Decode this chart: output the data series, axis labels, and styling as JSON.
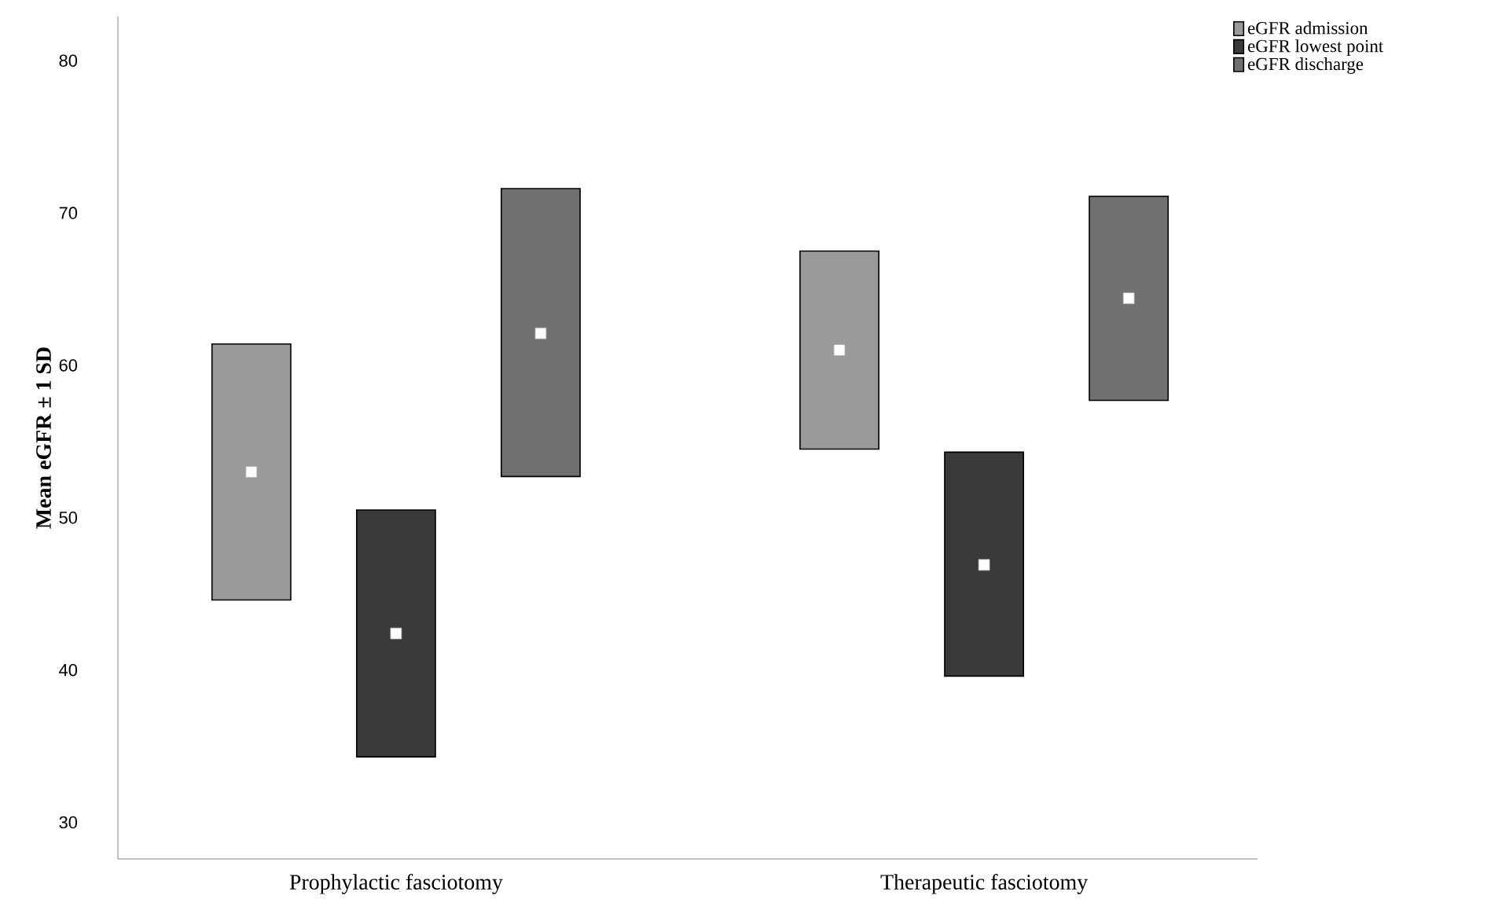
{
  "chart_data": {
    "type": "bar",
    "ylabel": "Mean eGFR ± 1 SD",
    "categories": [
      "Prophylactic fasciotomy",
      "Therapeutic fasciotomy"
    ],
    "ylim": [
      27.6,
      82.9
    ],
    "yticks": [
      30,
      40,
      50,
      60,
      70,
      80
    ],
    "legend": "top right",
    "grid": false,
    "series": [
      {
        "name": "eGFR admission",
        "color": "#9a9a9a",
        "base": [
          44.6,
          54.5
        ],
        "values": [
          16.8,
          13.0
        ]
      },
      {
        "name": "eGFR lowest point",
        "color": "#3a3a3a",
        "base": [
          34.3,
          39.6
        ],
        "values": [
          16.2,
          14.7
        ]
      },
      {
        "name": "eGFR discharge",
        "color": "#707070",
        "base": [
          52.7,
          57.7
        ],
        "values": [
          18.9,
          13.4
        ]
      },
      {
        "type": "scatter",
        "marker": "square",
        "color": "#ffffff",
        "x": [
          "Prophylactic fasciotomy",
          "Therapeutic fasciotomy"
        ],
        "values": [
          53.0,
          61.0
        ]
      },
      {
        "type": "scatter",
        "marker": "square",
        "color": "#ffffff",
        "x": [
          "Prophylactic fasciotomy",
          "Therapeutic fasciotomy"
        ],
        "values": [
          42.4,
          46.9
        ]
      },
      {
        "type": "scatter",
        "marker": "square",
        "color": "#ffffff",
        "x": [
          "Prophylactic fasciotomy",
          "Therapeutic fasciotomy"
        ],
        "values": [
          62.1,
          64.4
        ]
      }
    ]
  }
}
